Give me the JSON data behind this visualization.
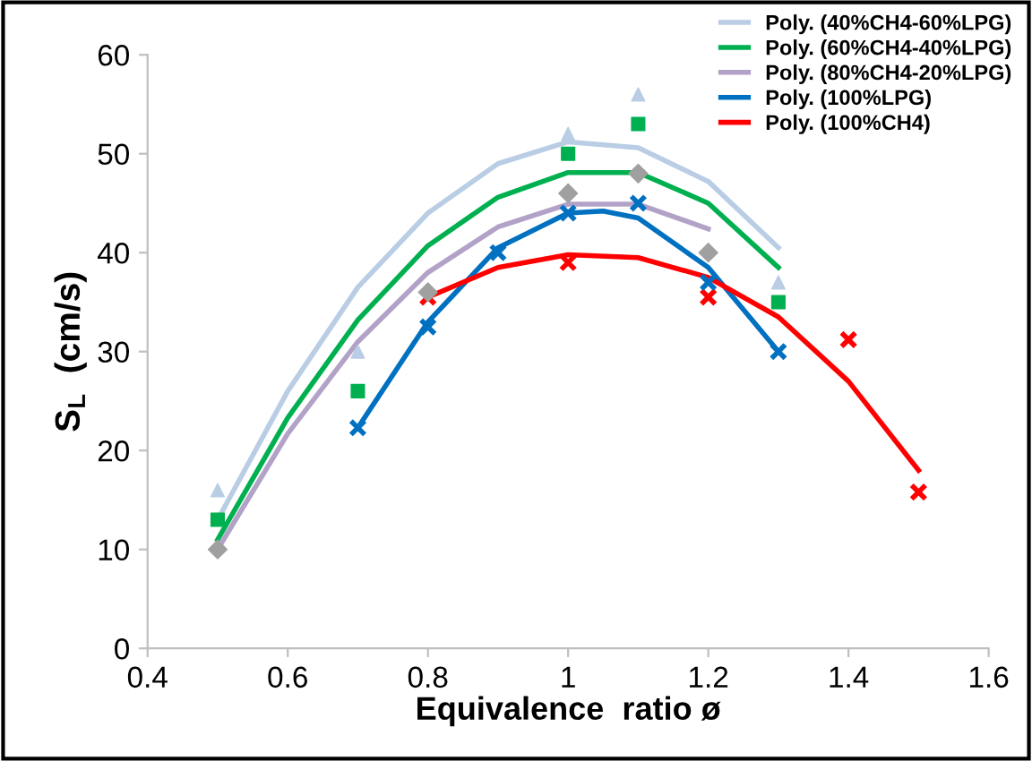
{
  "chart_data": {
    "type": "line",
    "xlabel": "Equivalence  ratio ø",
    "ylabel": "S$_{L}$  (cm/s)",
    "xlim": [
      0.4,
      1.6
    ],
    "xticks": [
      0.4,
      0.6,
      0.8,
      1,
      1.2,
      1.4,
      1.6
    ],
    "ylim": [
      0,
      60
    ],
    "yticks": [
      0,
      10,
      20,
      30,
      40,
      50,
      60
    ],
    "grid": false,
    "legend": "top right",
    "series": [
      {
        "type": "scatter",
        "marker": "triangle",
        "color": "#b9cde5",
        "x": [
          0.5,
          0.7,
          1.0,
          1.1,
          1.3
        ],
        "values": [
          16,
          30,
          52,
          56,
          37
        ]
      },
      {
        "type": "scatter",
        "marker": "square",
        "color": "#00b050",
        "x": [
          0.5,
          0.7,
          1.0,
          1.1,
          1.3
        ],
        "values": [
          13,
          26,
          50,
          53,
          35
        ]
      },
      {
        "type": "scatter",
        "marker": "diamond",
        "color": "#a0a0a0",
        "x": [
          0.5,
          0.8,
          1.0,
          1.1,
          1.2
        ],
        "values": [
          10,
          36,
          46,
          48,
          40
        ]
      },
      {
        "type": "scatter",
        "marker": "cross",
        "color": "#0070c0",
        "x": [
          0.7,
          0.8,
          0.9,
          1.0,
          1.1,
          1.2,
          1.3
        ],
        "values": [
          22.3,
          32.5,
          40,
          44,
          45,
          37,
          30
        ]
      },
      {
        "type": "scatter",
        "marker": "cross",
        "color": "#ff0000",
        "x": [
          0.8,
          1.0,
          1.2,
          1.4,
          1.5
        ],
        "values": [
          35.5,
          39,
          35.5,
          31.2,
          15.8
        ]
      },
      {
        "name": "Poly. (40%CH4-60%LPG)",
        "color": "#b9cde5",
        "x": [
          0.5,
          0.6,
          0.7,
          0.8,
          0.9,
          1.0,
          1.1,
          1.2,
          1.3
        ],
        "values": [
          13,
          26,
          36.5,
          44,
          49,
          51.2,
          50.6,
          47.2,
          40.5
        ]
      },
      {
        "name": "Poly. (60%CH4-40%LPG)",
        "color": "#00b050",
        "x": [
          0.5,
          0.6,
          0.7,
          0.8,
          0.9,
          1.0,
          1.1,
          1.2,
          1.3
        ],
        "values": [
          11,
          23.3,
          33.2,
          40.7,
          45.6,
          48.1,
          48.1,
          45,
          38.5
        ]
      },
      {
        "name": "Poly. (80%CH4-20%LPG)",
        "color": "#b3a2c7",
        "x": [
          0.5,
          0.6,
          0.7,
          0.8,
          0.9,
          1.0,
          1.1,
          1.2
        ],
        "values": [
          10,
          21.7,
          31,
          38,
          42.6,
          44.9,
          44.9,
          42.4
        ]
      },
      {
        "name": "Poly. (100%LPG)",
        "color": "#0070c0",
        "x": [
          0.7,
          0.8,
          0.9,
          1.0,
          1.05,
          1.1,
          1.2,
          1.3
        ],
        "values": [
          22.3,
          33,
          40.5,
          44,
          44.2,
          43.5,
          38.5,
          30
        ]
      },
      {
        "name": "Poly. (100%CH4)",
        "color": "#ff0000",
        "x": [
          0.8,
          0.9,
          1.0,
          1.1,
          1.2,
          1.3,
          1.4,
          1.5
        ],
        "values": [
          35.5,
          38.5,
          39.8,
          39.5,
          37.5,
          33.5,
          27,
          18
        ]
      }
    ]
  }
}
